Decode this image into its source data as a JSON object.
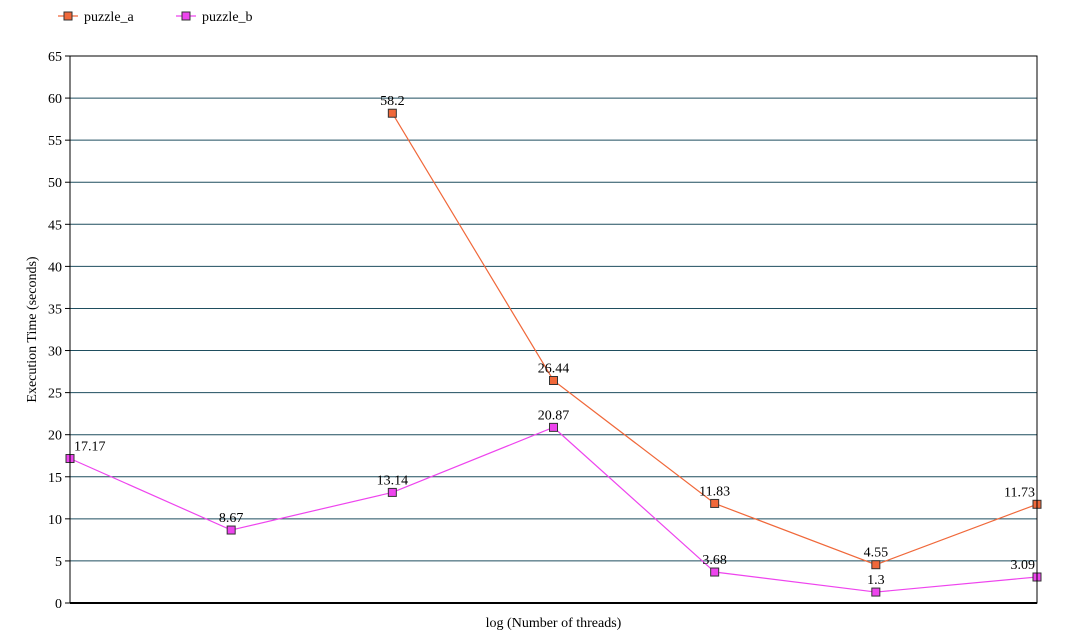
{
  "chart_data": {
    "type": "line",
    "title": "",
    "xlabel": "log (Number of threads)",
    "ylabel": "Execution Time (seconds)",
    "ylim": [
      0,
      65
    ],
    "yticks": [
      0,
      5,
      10,
      15,
      20,
      25,
      30,
      35,
      40,
      45,
      50,
      55,
      60,
      65
    ],
    "x": [
      0,
      1,
      2,
      3,
      4,
      5,
      6
    ],
    "grid": true,
    "legend_position": "top-left",
    "series": [
      {
        "name": "puzzle_a",
        "color": "#f0683a",
        "marker": "square",
        "values": [
          null,
          null,
          58.2,
          26.44,
          11.83,
          4.55,
          11.73
        ],
        "labels": [
          null,
          null,
          "58.2",
          "26.44",
          "11.83",
          "4.55",
          "11.73"
        ]
      },
      {
        "name": "puzzle_b",
        "color": "#ee44ee",
        "marker": "square",
        "values": [
          17.17,
          8.67,
          13.14,
          20.87,
          3.68,
          1.3,
          3.09
        ],
        "labels": [
          "17.17",
          "8.67",
          "13.14",
          "20.87",
          "3.68",
          "1.3",
          "3.09"
        ]
      }
    ]
  }
}
